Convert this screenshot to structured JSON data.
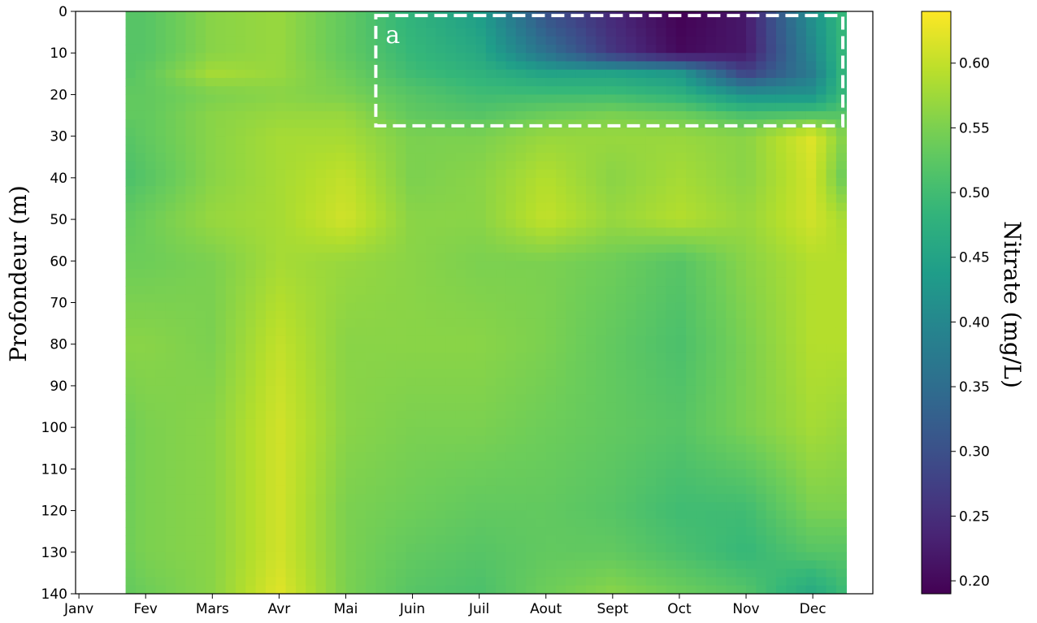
{
  "chart_data": {
    "type": "heatmap",
    "ylabel": "Profondeur (m)",
    "colorbar_label": "Nitrate  (mg/L)",
    "x_categories": [
      "Janv",
      "Fev",
      "Mars",
      "Avr",
      "Mai",
      "Juin",
      "Juil",
      "Aout",
      "Sept",
      "Oct",
      "Nov",
      "Dec"
    ],
    "y_ticks": [
      0,
      10,
      20,
      30,
      40,
      50,
      60,
      70,
      80,
      90,
      100,
      110,
      120,
      130,
      140
    ],
    "y_range": [
      0,
      140
    ],
    "y_inverted": true,
    "colorbar": {
      "colormap": "viridis",
      "range": [
        0.19,
        0.64
      ],
      "ticks": [
        0.2,
        0.25,
        0.3,
        0.35,
        0.4,
        0.45,
        0.5,
        0.55,
        0.6
      ],
      "tick_labels": [
        "0.20",
        "0.25",
        "0.30",
        "0.35",
        "0.40",
        "0.45",
        "0.50",
        "0.55",
        "0.60"
      ]
    },
    "data_x_range": [
      0.7,
      11.5
    ],
    "depths": [
      0,
      10,
      15,
      20,
      25,
      30,
      40,
      50,
      60,
      80,
      100,
      120,
      130,
      140
    ],
    "months_x": [
      0.7,
      1,
      2,
      3,
      4,
      5,
      6,
      7,
      8,
      9,
      10,
      11,
      11.5
    ],
    "values": [
      [
        0.52,
        0.52,
        0.56,
        0.57,
        0.53,
        0.48,
        0.44,
        0.3,
        0.24,
        0.19,
        0.22,
        0.42,
        0.5
      ],
      [
        0.52,
        0.52,
        0.56,
        0.57,
        0.53,
        0.49,
        0.46,
        0.36,
        0.26,
        0.2,
        0.22,
        0.4,
        0.5
      ],
      [
        0.52,
        0.53,
        0.58,
        0.57,
        0.54,
        0.5,
        0.48,
        0.45,
        0.45,
        0.43,
        0.28,
        0.38,
        0.5
      ],
      [
        0.53,
        0.53,
        0.55,
        0.56,
        0.55,
        0.52,
        0.5,
        0.5,
        0.5,
        0.48,
        0.42,
        0.42,
        0.5
      ],
      [
        0.53,
        0.53,
        0.56,
        0.57,
        0.57,
        0.53,
        0.52,
        0.54,
        0.55,
        0.54,
        0.51,
        0.52,
        0.52
      ],
      [
        0.52,
        0.53,
        0.56,
        0.58,
        0.58,
        0.55,
        0.55,
        0.57,
        0.57,
        0.57,
        0.56,
        0.62,
        0.55
      ],
      [
        0.51,
        0.52,
        0.56,
        0.58,
        0.6,
        0.55,
        0.56,
        0.59,
        0.56,
        0.58,
        0.56,
        0.61,
        0.53
      ],
      [
        0.53,
        0.54,
        0.57,
        0.58,
        0.61,
        0.56,
        0.56,
        0.6,
        0.57,
        0.59,
        0.57,
        0.61,
        0.58
      ],
      [
        0.54,
        0.54,
        0.55,
        0.58,
        0.57,
        0.56,
        0.55,
        0.55,
        0.54,
        0.52,
        0.56,
        0.59,
        0.59
      ],
      [
        0.56,
        0.56,
        0.55,
        0.6,
        0.56,
        0.56,
        0.56,
        0.55,
        0.53,
        0.51,
        0.55,
        0.59,
        0.59
      ],
      [
        0.54,
        0.55,
        0.56,
        0.61,
        0.56,
        0.55,
        0.55,
        0.54,
        0.53,
        0.52,
        0.55,
        0.58,
        0.57
      ],
      [
        0.54,
        0.55,
        0.56,
        0.61,
        0.55,
        0.54,
        0.53,
        0.53,
        0.52,
        0.5,
        0.5,
        0.55,
        0.55
      ],
      [
        0.54,
        0.55,
        0.56,
        0.61,
        0.55,
        0.53,
        0.52,
        0.53,
        0.53,
        0.51,
        0.49,
        0.52,
        0.52
      ],
      [
        0.53,
        0.54,
        0.56,
        0.62,
        0.55,
        0.52,
        0.51,
        0.54,
        0.56,
        0.54,
        0.52,
        0.46,
        0.5
      ]
    ],
    "annotation": {
      "label": "a",
      "x_range": [
        4.45,
        11.45
      ],
      "y_range": [
        1,
        27.5
      ],
      "style": "white dashed rectangle"
    }
  }
}
